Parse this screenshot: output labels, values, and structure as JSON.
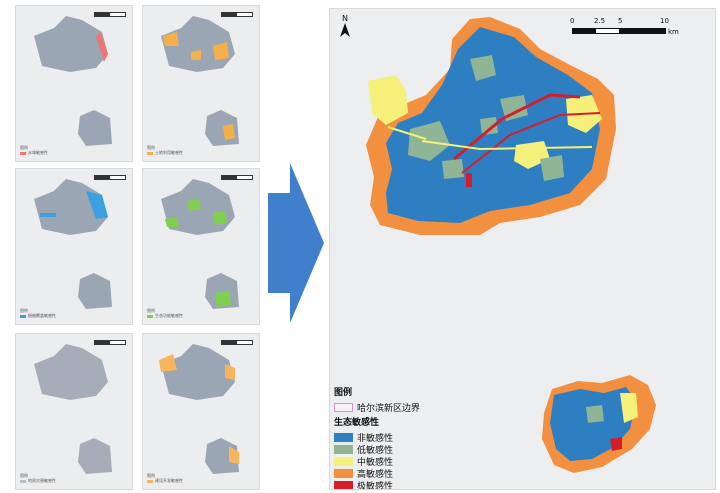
{
  "thumbnails": {
    "t1": {
      "legend_title": "图例",
      "legend_label": "水域敏感性",
      "accent": "#f07474"
    },
    "t2": {
      "legend_title": "图例",
      "legend_label": "土地利用敏感性",
      "accent": "#f5b04a"
    },
    "t3": {
      "legend_title": "图例",
      "legend_label": "植被覆盖敏感性",
      "accent": "#3aa0e0"
    },
    "t4": {
      "legend_title": "图例",
      "legend_label": "生态功能敏感性",
      "accent": "#7fd04f"
    },
    "t5": {
      "legend_title": "图例",
      "legend_label": "地质灾害敏感性",
      "accent": "#b8bcc4"
    },
    "t6": {
      "legend_title": "图例",
      "legend_label": "建设开发敏感性",
      "accent": "#f8b55c"
    }
  },
  "main_map": {
    "north_label": "N",
    "scale": {
      "ticks": [
        "0",
        "2.5",
        "5",
        "10"
      ],
      "unit": "km"
    },
    "legend": {
      "title": "图例",
      "boundary_label": "哈尔滨新区边界",
      "section_title": "生态敏感性",
      "items": [
        {
          "label": "非敏感性",
          "color": "#2e7fc2"
        },
        {
          "label": "低敏感性",
          "color": "#8fb596"
        },
        {
          "label": "中敏感性",
          "color": "#f4f07a"
        },
        {
          "label": "高敏感性",
          "color": "#f29040"
        },
        {
          "label": "极敏感性",
          "color": "#d61d2b"
        }
      ]
    }
  }
}
